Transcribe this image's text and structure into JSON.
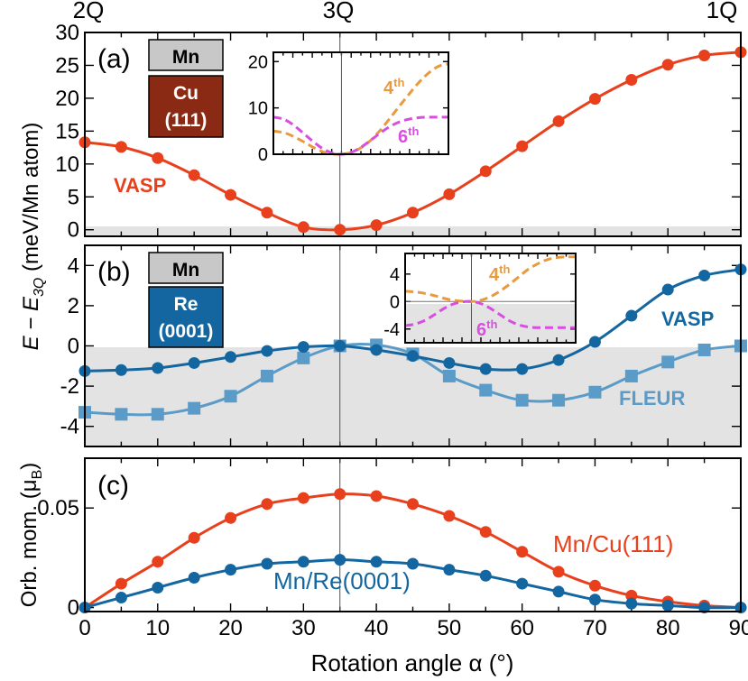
{
  "colors": {
    "cu_red": "#e8401c",
    "re_blue": "#1466a0",
    "fleur_blue": "#5b9bc8",
    "inset_orange": "#e89a3c",
    "inset_magenta": "#d84fe0",
    "cu_box": "#8b2a14",
    "mn_box": "#c8c8c8",
    "shade": "#e3e3e3"
  },
  "chart_data": [
    {
      "id": "a",
      "type": "line",
      "panel_label": "(a)",
      "top_labels": [
        "2Q",
        "3Q",
        "1Q"
      ],
      "ylim": [
        -1,
        30
      ],
      "yticks": [
        0,
        5,
        10,
        15,
        20,
        25,
        30
      ],
      "ytick_labels": [
        "0",
        "5",
        "10",
        "15",
        "20",
        "25",
        "30"
      ],
      "stack": {
        "top": "Mn",
        "bottom_line1": "Cu",
        "bottom_line2": "(111)"
      },
      "series": [
        {
          "name": "VASP",
          "x": [
            0,
            5,
            10,
            15,
            20,
            25,
            30,
            35,
            40,
            45,
            50,
            55,
            60,
            65,
            70,
            75,
            80,
            85,
            90
          ],
          "values": [
            13.3,
            12.6,
            10.9,
            8.3,
            5.3,
            2.6,
            0.4,
            0.0,
            0.7,
            2.6,
            5.4,
            8.9,
            12.7,
            16.5,
            19.9,
            22.8,
            25.1,
            26.5,
            27.0
          ]
        }
      ],
      "inset": {
        "ylim": [
          0,
          22
        ],
        "yticks": [
          0,
          10,
          20
        ],
        "ytick_labels": [
          "0",
          "10",
          "20"
        ],
        "series": [
          {
            "name": "4th",
            "label_main": "4",
            "label_sup": "th",
            "x": [
              0,
              5,
              10,
              15,
              20,
              25,
              30,
              35,
              40,
              45,
              50,
              55,
              60,
              65,
              70,
              75,
              80,
              85,
              90
            ],
            "values": [
              5.0,
              4.7,
              3.9,
              2.8,
              1.6,
              0.6,
              0.1,
              0.0,
              0.4,
              1.4,
              3.0,
              5.2,
              7.8,
              10.5,
              13.1,
              15.6,
              17.6,
              19.0,
              19.5
            ]
          },
          {
            "name": "6th",
            "label_main": "6",
            "label_sup": "th",
            "x": [
              0,
              5,
              10,
              15,
              20,
              25,
              30,
              35,
              40,
              45,
              50,
              55,
              60,
              65,
              70,
              75,
              80,
              85,
              90
            ],
            "values": [
              8.0,
              7.6,
              6.4,
              4.7,
              2.9,
              1.3,
              0.3,
              0.0,
              0.4,
              1.5,
              3.0,
              4.6,
              6.0,
              7.0,
              7.6,
              7.9,
              8.0,
              8.0,
              8.0
            ]
          }
        ]
      }
    },
    {
      "id": "b",
      "type": "line",
      "panel_label": "(b)",
      "ylabel_main": "E − E",
      "ylabel_sub": "3Q",
      "ylabel_unit": " (meV/Mn atom)",
      "ylim": [
        -5,
        5
      ],
      "yticks": [
        -4,
        -2,
        0,
        2,
        4
      ],
      "ytick_labels": [
        "-4",
        "-2",
        "0",
        "2",
        "4"
      ],
      "stack": {
        "top": "Mn",
        "bottom_line1": "Re",
        "bottom_line2": "(0001)"
      },
      "series": [
        {
          "name": "VASP",
          "marker": "circle",
          "x": [
            0,
            5,
            10,
            15,
            20,
            25,
            30,
            35,
            40,
            45,
            50,
            55,
            60,
            65,
            70,
            75,
            80,
            85,
            90
          ],
          "values": [
            -1.25,
            -1.2,
            -1.1,
            -0.85,
            -0.55,
            -0.25,
            -0.05,
            0.0,
            -0.2,
            -0.5,
            -0.85,
            -1.15,
            -1.15,
            -0.7,
            0.2,
            1.5,
            2.8,
            3.5,
            3.8
          ]
        },
        {
          "name": "FLEUR",
          "marker": "square",
          "x": [
            0,
            5,
            10,
            15,
            20,
            25,
            30,
            35,
            40,
            45,
            50,
            55,
            60,
            65,
            70,
            75,
            80,
            85,
            90
          ],
          "values": [
            -3.3,
            -3.4,
            -3.4,
            -3.1,
            -2.5,
            -1.5,
            -0.6,
            0.0,
            0.05,
            -0.4,
            -1.5,
            -2.2,
            -2.7,
            -2.7,
            -2.3,
            -1.5,
            -0.8,
            -0.2,
            0.0
          ]
        }
      ],
      "inset": {
        "ylim": [
          -6,
          7
        ],
        "yticks": [
          -4,
          0,
          4
        ],
        "ytick_labels": [
          "-4",
          "0",
          "4"
        ],
        "series": [
          {
            "name": "4th",
            "label_main": "4",
            "label_sup": "th",
            "x": [
              0,
              5,
              10,
              15,
              20,
              25,
              30,
              35,
              40,
              45,
              50,
              55,
              60,
              65,
              70,
              75,
              80,
              85,
              90
            ],
            "values": [
              1.5,
              1.4,
              1.2,
              0.9,
              0.5,
              0.2,
              0.05,
              0.0,
              0.2,
              0.7,
              1.5,
              2.5,
              3.6,
              4.7,
              5.5,
              6.1,
              6.4,
              6.5,
              6.5
            ]
          },
          {
            "name": "6th",
            "label_main": "6",
            "label_sup": "th",
            "x": [
              0,
              5,
              10,
              15,
              20,
              25,
              30,
              35,
              40,
              45,
              50,
              55,
              60,
              65,
              70,
              75,
              80,
              85,
              90
            ],
            "values": [
              -3.5,
              -3.3,
              -2.8,
              -2.0,
              -1.1,
              -0.4,
              -0.05,
              0.0,
              -0.3,
              -1.0,
              -1.9,
              -2.8,
              -3.4,
              -3.7,
              -3.8,
              -3.8,
              -3.8,
              -3.8,
              -3.8
            ]
          }
        ]
      }
    },
    {
      "id": "c",
      "type": "line",
      "panel_label": "(c)",
      "ylabel_main": "Orb. mom. (μ",
      "ylabel_sub": "B",
      "ylabel_end": ")",
      "xlabel": "Rotation angle α (°)",
      "xlim": [
        0,
        90
      ],
      "xticks": [
        0,
        10,
        20,
        30,
        40,
        50,
        60,
        70,
        80,
        90
      ],
      "xtick_labels": [
        "0",
        "10",
        "20",
        "30",
        "40",
        "50",
        "60",
        "70",
        "80",
        "90"
      ],
      "ylim": [
        -0.002,
        0.075
      ],
      "yticks": [
        0,
        0.05
      ],
      "ytick_labels": [
        "0",
        "0.05"
      ],
      "series": [
        {
          "name": "Mn/Cu(111)",
          "x": [
            0,
            5,
            10,
            15,
            20,
            25,
            30,
            35,
            40,
            45,
            50,
            55,
            60,
            65,
            70,
            75,
            80,
            85,
            90
          ],
          "values": [
            0.0,
            0.012,
            0.023,
            0.035,
            0.045,
            0.052,
            0.055,
            0.057,
            0.056,
            0.052,
            0.046,
            0.038,
            0.028,
            0.018,
            0.011,
            0.006,
            0.003,
            0.001,
            0.0
          ]
        },
        {
          "name": "Mn/Re(0001)",
          "x": [
            0,
            5,
            10,
            15,
            20,
            25,
            30,
            35,
            40,
            45,
            50,
            55,
            60,
            65,
            70,
            75,
            80,
            85,
            90
          ],
          "values": [
            0.0,
            0.005,
            0.01,
            0.015,
            0.019,
            0.022,
            0.023,
            0.024,
            0.023,
            0.022,
            0.019,
            0.016,
            0.012,
            0.008,
            0.004,
            0.002,
            0.001,
            0.0,
            0.0
          ]
        }
      ]
    }
  ]
}
